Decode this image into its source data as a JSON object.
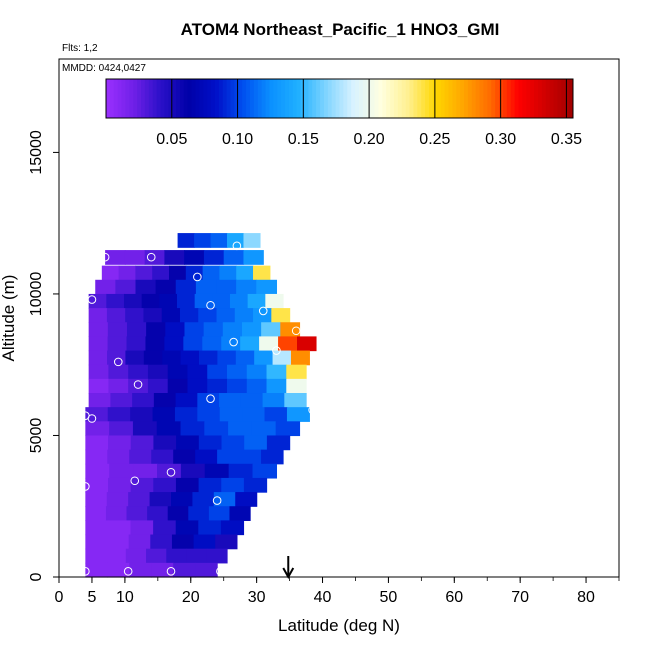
{
  "chart_data": {
    "type": "heatmap",
    "title": "ATOM4 Northeast_Pacific_1 HNO3_GMI",
    "flights_label": "Flts: 1,2",
    "dates_label": "MMDD: 0424,0427",
    "xlabel": "Latitude (deg N)",
    "ylabel": "Altitude (m)",
    "xlim": [
      0,
      85
    ],
    "ylim": [
      0,
      18300
    ],
    "x_ticks": [
      0,
      5,
      10,
      20,
      30,
      40,
      50,
      60,
      70,
      80
    ],
    "x_tick_labels": [
      "0",
      "5",
      "10",
      "20",
      "30",
      "40",
      "50",
      "60",
      "70",
      "80"
    ],
    "y_ticks": [
      0,
      5000,
      10000,
      15000
    ],
    "y_tick_labels": [
      "0",
      "5000",
      "10000",
      "15000"
    ],
    "colorbar": {
      "range": [
        0,
        0.355
      ],
      "ticks": [
        0.05,
        0.1,
        0.15,
        0.2,
        0.25,
        0.3,
        0.35
      ],
      "tick_labels": [
        "0.05",
        "0.10",
        "0.15",
        "0.20",
        "0.25",
        "0.30",
        "0.35"
      ],
      "colors": [
        "#9b30ff",
        "#7020e8",
        "#2a10c8",
        "#0000a8",
        "#0010c8",
        "#0050f0",
        "#0b90ff",
        "#20b0ff",
        "#7fd4ff",
        "#d8f2ff",
        "#ffffe0",
        "#fff090",
        "#ffd700",
        "#ffa500",
        "#ff6a00",
        "#ff0000",
        "#d00000",
        "#a00000"
      ]
    },
    "layers": [
      {
        "alt": 11900,
        "lat_min": 18,
        "lat_max": 30.5,
        "v": [
          0.09,
          0.1,
          0.11,
          0.14,
          0.17
        ]
      },
      {
        "alt": 11300,
        "lat_min": 7,
        "lat_max": 31,
        "v": [
          0.02,
          0.02,
          0.03,
          0.05,
          0.07,
          0.09,
          0.11,
          0.13
        ]
      },
      {
        "alt": 10750,
        "lat_min": 6.5,
        "lat_max": 32,
        "v": [
          0.01,
          0.02,
          0.03,
          0.04,
          0.06,
          0.09,
          0.11,
          0.12,
          0.14,
          0.24
        ]
      },
      {
        "alt": 10250,
        "lat_min": 5.5,
        "lat_max": 33,
        "v": [
          0.02,
          0.03,
          0.05,
          0.06,
          0.09,
          0.11,
          0.11,
          0.12,
          0.13
        ]
      },
      {
        "alt": 9750,
        "lat_min": 4.5,
        "lat_max": 34,
        "v": [
          0.03,
          0.04,
          0.05,
          0.06,
          0.07,
          0.09,
          0.11,
          0.11,
          0.12,
          0.14,
          0.2
        ]
      },
      {
        "alt": 9250,
        "lat_min": 4.5,
        "lat_max": 35,
        "v": [
          0.02,
          0.03,
          0.04,
          0.05,
          0.07,
          0.09,
          0.1,
          0.11,
          0.12,
          0.13,
          0.24
        ]
      },
      {
        "alt": 8750,
        "lat_min": 4.5,
        "lat_max": 36.5,
        "v": [
          0.02,
          0.03,
          0.04,
          0.06,
          0.08,
          0.1,
          0.11,
          0.12,
          0.13,
          0.16,
          0.28
        ]
      },
      {
        "alt": 8250,
        "lat_min": 4.5,
        "lat_max": 39,
        "v": [
          0.02,
          0.03,
          0.04,
          0.06,
          0.08,
          0.1,
          0.11,
          0.12,
          0.14,
          0.2,
          0.3,
          0.33
        ]
      },
      {
        "alt": 7750,
        "lat_min": 4.5,
        "lat_max": 38,
        "v": [
          0.02,
          0.03,
          0.05,
          0.06,
          0.07,
          0.08,
          0.09,
          0.1,
          0.11,
          0.13,
          0.18,
          0.28
        ]
      },
      {
        "alt": 7250,
        "lat_min": 4.5,
        "lat_max": 37.5,
        "v": [
          0.02,
          0.03,
          0.04,
          0.05,
          0.07,
          0.08,
          0.1,
          0.11,
          0.12,
          0.15,
          0.24
        ]
      },
      {
        "alt": 6750,
        "lat_min": 4.5,
        "lat_max": 37.5,
        "v": [
          0.01,
          0.02,
          0.03,
          0.04,
          0.06,
          0.08,
          0.09,
          0.1,
          0.11,
          0.13,
          0.2
        ]
      },
      {
        "alt": 6250,
        "lat_min": 4.5,
        "lat_max": 37.5,
        "v": [
          0.02,
          0.03,
          0.04,
          0.06,
          0.08,
          0.1,
          0.11,
          0.11,
          0.12,
          0.16
        ]
      },
      {
        "alt": 5750,
        "lat_min": 4.0,
        "lat_max": 38,
        "v": [
          0.03,
          0.04,
          0.05,
          0.07,
          0.09,
          0.1,
          0.11,
          0.11,
          0.1,
          0.13
        ]
      },
      {
        "alt": 5250,
        "lat_min": 4.0,
        "lat_max": 36.5,
        "v": [
          0.02,
          0.03,
          0.05,
          0.07,
          0.09,
          0.1,
          0.11,
          0.11,
          0.1
        ]
      },
      {
        "alt": 4750,
        "lat_min": 4.0,
        "lat_max": 35,
        "v": [
          0.01,
          0.02,
          0.03,
          0.05,
          0.07,
          0.09,
          0.1,
          0.11,
          0.09
        ]
      },
      {
        "alt": 4250,
        "lat_min": 4.0,
        "lat_max": 34,
        "v": [
          0.01,
          0.02,
          0.03,
          0.04,
          0.06,
          0.08,
          0.1,
          0.1,
          0.09
        ]
      },
      {
        "alt": 3750,
        "lat_min": 4.0,
        "lat_max": 33,
        "v": [
          0.01,
          0.02,
          0.02,
          0.03,
          0.05,
          0.07,
          0.09,
          0.1
        ]
      },
      {
        "alt": 3250,
        "lat_min": 4.0,
        "lat_max": 31.5,
        "v": [
          0.01,
          0.02,
          0.03,
          0.04,
          0.06,
          0.09,
          0.1,
          0.09
        ]
      },
      {
        "alt": 2750,
        "lat_min": 4.0,
        "lat_max": 30,
        "v": [
          0.01,
          0.02,
          0.03,
          0.05,
          0.07,
          0.09,
          0.11,
          0.08
        ]
      },
      {
        "alt": 2250,
        "lat_min": 4.0,
        "lat_max": 29,
        "v": [
          0.01,
          0.02,
          0.03,
          0.04,
          0.06,
          0.09,
          0.1,
          0.07
        ]
      },
      {
        "alt": 1750,
        "lat_min": 4.0,
        "lat_max": 28,
        "v": [
          0.01,
          0.01,
          0.02,
          0.04,
          0.07,
          0.09,
          0.08
        ]
      },
      {
        "alt": 1250,
        "lat_min": 4.0,
        "lat_max": 27,
        "v": [
          0.01,
          0.01,
          0.02,
          0.04,
          0.06,
          0.08,
          0.05
        ]
      },
      {
        "alt": 750,
        "lat_min": 4.0,
        "lat_max": 25.5,
        "v": [
          0.01,
          0.01,
          0.02,
          0.03,
          0.04,
          0.04,
          0.04
        ]
      },
      {
        "alt": 250,
        "lat_min": 4.0,
        "lat_max": 24,
        "v": [
          0.01,
          0.01,
          0.02,
          0.02,
          0.03,
          0.03
        ]
      }
    ],
    "obs_points": [
      {
        "lat": 7,
        "alt": 11300
      },
      {
        "lat": 14,
        "alt": 11300
      },
      {
        "lat": 27,
        "alt": 11700
      },
      {
        "lat": 21,
        "alt": 10600
      },
      {
        "lat": 5,
        "alt": 9800
      },
      {
        "lat": 23,
        "alt": 9600
      },
      {
        "lat": 31,
        "alt": 9400
      },
      {
        "lat": 36,
        "alt": 8700
      },
      {
        "lat": 26.5,
        "alt": 8300
      },
      {
        "lat": 33,
        "alt": 8000
      },
      {
        "lat": 9,
        "alt": 7600
      },
      {
        "lat": 12,
        "alt": 6800
      },
      {
        "lat": 23,
        "alt": 6300
      },
      {
        "lat": 38.5,
        "alt": 5900
      },
      {
        "lat": 4,
        "alt": 5700
      },
      {
        "lat": 5,
        "alt": 5600
      },
      {
        "lat": 17,
        "alt": 3700
      },
      {
        "lat": 11.5,
        "alt": 3400
      },
      {
        "lat": 4,
        "alt": 3200
      },
      {
        "lat": 24,
        "alt": 2700
      },
      {
        "lat": 4,
        "alt": 200
      },
      {
        "lat": 10.5,
        "alt": 200
      },
      {
        "lat": 17,
        "alt": 200
      },
      {
        "lat": 24.5,
        "alt": 200
      }
    ],
    "marker_latitude": 34.8
  }
}
